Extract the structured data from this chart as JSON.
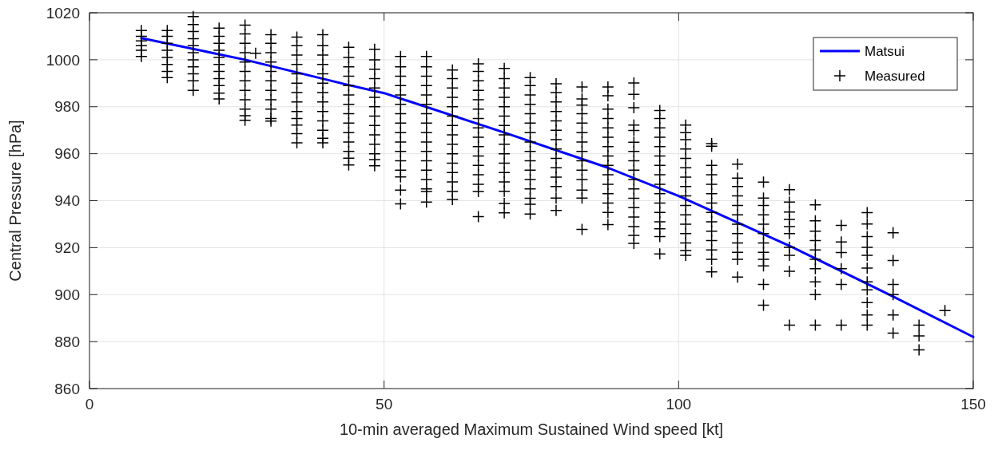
{
  "chart_data": {
    "type": "scatter",
    "xlabel": "10-min averaged Maximum Sustained Wind speed [kt]",
    "ylabel": "Central Pressure [hPa]",
    "xlim": [
      0,
      150
    ],
    "xticks": [
      0,
      50,
      100,
      150
    ],
    "ylim": [
      860,
      1020
    ],
    "yticks": [
      860,
      880,
      900,
      920,
      940,
      960,
      980,
      1000,
      1020
    ],
    "grid": true,
    "legend": "top right",
    "series": [
      {
        "name": "Matsui",
        "type": "line",
        "color": "#0000ff",
        "line_style": "solid",
        "marker": "none",
        "x": [
          8.8,
          26.4,
          44,
          50,
          70.4,
          88,
          100,
          118.8,
          136.4,
          150
        ],
        "values": [
          1009.2,
          1000,
          989.2,
          985.8,
          969,
          954,
          942,
          920.8,
          899.2,
          882
        ]
      },
      {
        "name": "Measured",
        "color": "#000000",
        "marker": "cross",
        "x": [
          8.8,
          8.8,
          8.8,
          8.8,
          8.8,
          8.8,
          13.2,
          13.2,
          13.2,
          13.2,
          13.2,
          13.2,
          13.2,
          13.2,
          17.6,
          17.6,
          17.6,
          17.6,
          17.6,
          17.6,
          17.6,
          17.6,
          17.6,
          17.6,
          17.6,
          22,
          22,
          22,
          22,
          22,
          22,
          22,
          22,
          22,
          22,
          22,
          26.4,
          26.4,
          26.4,
          26.4,
          26.4,
          26.4,
          26.4,
          26.4,
          26.4,
          26.4,
          26.4,
          26.4,
          28.2,
          30.8,
          30.8,
          30.8,
          30.8,
          30.8,
          30.8,
          30.8,
          30.8,
          30.8,
          30.8,
          30.8,
          35.2,
          35.2,
          35.2,
          35.2,
          35.2,
          35.2,
          35.2,
          35.2,
          35.2,
          35.2,
          35.2,
          35.2,
          35.2,
          39.6,
          39.6,
          39.6,
          39.6,
          39.6,
          39.6,
          39.6,
          39.6,
          39.6,
          39.6,
          39.6,
          39.6,
          39.6,
          44,
          44,
          44,
          44,
          44,
          44,
          44,
          44,
          44,
          44,
          44,
          44,
          44,
          44,
          48.4,
          48.4,
          48.4,
          48.4,
          48.4,
          48.4,
          48.4,
          48.4,
          48.4,
          48.4,
          48.4,
          48.4,
          48.4,
          48.4,
          52.8,
          52.8,
          52.8,
          52.8,
          52.8,
          52.8,
          52.8,
          52.8,
          52.8,
          52.8,
          52.8,
          52.8,
          52.8,
          52.8,
          52.8,
          52.8,
          57.2,
          57.2,
          57.2,
          57.2,
          57.2,
          57.2,
          57.2,
          57.2,
          57.2,
          57.2,
          57.2,
          57.2,
          57.2,
          57.2,
          57.2,
          57.2,
          57.2,
          61.6,
          61.6,
          61.6,
          61.6,
          61.6,
          61.6,
          61.6,
          61.6,
          61.6,
          61.6,
          61.6,
          61.6,
          61.6,
          61.6,
          61.6,
          66,
          66,
          66,
          66,
          66,
          66,
          66,
          66,
          66,
          66,
          66,
          66,
          66,
          66,
          66,
          66,
          70.4,
          70.4,
          70.4,
          70.4,
          70.4,
          70.4,
          70.4,
          70.4,
          70.4,
          70.4,
          70.4,
          70.4,
          70.4,
          70.4,
          70.4,
          70.4,
          74.8,
          74.8,
          74.8,
          74.8,
          74.8,
          74.8,
          74.8,
          74.8,
          74.8,
          74.8,
          74.8,
          74.8,
          74.8,
          74.8,
          74.8,
          74.8,
          79.2,
          79.2,
          79.2,
          79.2,
          79.2,
          79.2,
          79.2,
          79.2,
          79.2,
          79.2,
          79.2,
          79.2,
          79.2,
          79.2,
          83.6,
          83.6,
          83.6,
          83.6,
          83.6,
          83.6,
          83.6,
          83.6,
          83.6,
          83.6,
          83.6,
          83.6,
          83.6,
          83.6,
          88,
          88,
          88,
          88,
          88,
          88,
          88,
          88,
          88,
          88,
          88,
          88,
          88,
          88,
          88,
          92.4,
          92.4,
          92.4,
          92.4,
          92.4,
          92.4,
          92.4,
          92.4,
          92.4,
          92.4,
          92.4,
          92.4,
          92.4,
          92.4,
          92.4,
          92.4,
          92.4,
          96.8,
          96.8,
          96.8,
          96.8,
          96.8,
          96.8,
          96.8,
          96.8,
          96.8,
          96.8,
          96.8,
          96.8,
          96.8,
          96.8,
          96.8,
          96.8,
          101.2,
          101.2,
          101.2,
          101.2,
          101.2,
          101.2,
          101.2,
          101.2,
          101.2,
          101.2,
          101.2,
          101.2,
          101.2,
          101.2,
          101.2,
          101.2,
          105.6,
          105.6,
          105.6,
          105.6,
          105.6,
          105.6,
          105.6,
          105.6,
          105.6,
          105.6,
          105.6,
          105.6,
          105.6,
          105.6,
          110,
          110,
          110,
          110,
          110,
          110,
          110,
          110,
          110,
          110,
          110,
          110,
          114.4,
          114.4,
          114.4,
          114.4,
          114.4,
          114.4,
          114.4,
          114.4,
          114.4,
          114.4,
          114.4,
          114.4,
          118.8,
          118.8,
          118.8,
          118.8,
          118.8,
          118.8,
          118.8,
          118.8,
          118.8,
          118.8,
          123.2,
          123.2,
          123.2,
          123.2,
          123.2,
          123.2,
          123.2,
          123.2,
          123.2,
          123.2,
          127.6,
          127.6,
          127.6,
          127.6,
          127.6,
          127.6,
          132,
          132,
          132,
          132,
          132,
          132,
          132,
          132,
          132,
          132,
          132,
          136.4,
          136.4,
          136.4,
          136.4,
          136.4,
          136.4,
          140.8,
          140.8,
          140.8,
          145.2
        ],
        "values": [
          1012.4,
          1010,
          1008,
          1006,
          1004,
          1001.4,
          1012.4,
          1010,
          1007,
          1004,
          1001,
          998,
          995,
          992.4,
          1018.4,
          1015,
          1012,
          1009,
          1006,
          1003,
          1000,
          997,
          994,
          991,
          987,
          1013.5,
          1010,
          1007,
          1004,
          1001,
          998,
          995,
          992,
          989,
          985.8,
          983.3,
          1014.7,
          1011,
          1007,
          1003,
          999,
          995,
          991,
          987,
          983,
          979,
          976.2,
          974.2,
          1002.8,
          1010.7,
          1007,
          1003,
          999,
          995,
          991,
          987,
          983,
          979,
          975,
          973.9,
          1009.6,
          1006,
          1002,
          998,
          994,
          990,
          986,
          982,
          978,
          975,
          972.2,
          968.5,
          964.6,
          1010.7,
          1006,
          1002,
          998,
          994,
          990,
          986,
          982,
          978,
          974,
          970,
          966.6,
          964.6,
          1005.3,
          1001,
          997,
          993,
          989,
          985,
          981,
          977,
          973,
          969,
          965,
          961,
          958.1,
          955.2,
          1004.5,
          1000,
          996,
          992,
          988,
          984,
          980,
          976,
          972,
          968,
          964,
          960,
          957.5,
          954.9,
          1001.4,
          997,
          993,
          989,
          985,
          981,
          977,
          973,
          969,
          965,
          961,
          957,
          953,
          950.1,
          944.5,
          938.6,
          1001.4,
          997,
          993,
          989,
          985,
          981,
          977,
          973,
          969,
          965,
          961,
          957,
          953,
          949,
          945,
          943.9,
          939.4,
          995.6,
          992,
          988,
          984,
          980,
          976,
          972,
          968,
          964,
          960,
          956,
          952,
          948,
          943.9,
          940.5,
          998.3,
          995,
          991,
          987,
          983,
          979,
          975,
          971,
          967,
          963,
          959,
          955,
          951,
          947,
          943.9,
          933.2,
          996.3,
          992,
          988,
          984,
          980,
          976,
          972,
          968,
          964,
          960,
          956,
          952,
          948,
          944,
          938.8,
          934.8,
          992.4,
          989,
          985,
          981,
          977,
          973,
          969,
          965,
          961,
          957,
          953,
          949,
          945,
          941,
          938.5,
          934.3,
          989.8,
          986,
          982,
          978,
          974,
          970,
          966,
          962,
          958,
          954,
          950,
          946,
          941.1,
          935.8,
          988.4,
          983.3,
          980.7,
          977,
          973,
          969,
          965,
          961,
          957,
          953,
          949,
          944.5,
          941.1,
          927.8,
          988.4,
          984.7,
          979,
          975,
          971,
          967,
          963,
          959,
          955,
          951,
          947,
          943,
          939,
          935,
          929.8,
          990.1,
          985.3,
          979.6,
          972.2,
          969.9,
          964.9,
          961,
          957,
          953,
          949,
          945,
          941,
          937,
          933,
          929,
          925.2,
          921.8,
          978.4,
          975,
          971,
          967,
          963,
          959,
          955,
          951,
          947,
          943,
          939,
          935,
          931,
          928,
          924.7,
          917.3,
          972.2,
          969,
          966,
          962,
          958,
          954,
          950,
          946,
          942,
          938,
          934,
          930,
          926,
          922,
          918.8,
          916.7,
          964.3,
          963.2,
          955,
          951,
          947,
          943,
          939,
          935,
          931,
          927,
          923,
          919,
          915,
          909.7,
          955.5,
          949.6,
          946,
          942,
          938,
          934,
          930,
          926,
          922,
          918,
          915,
          907.5,
          947.9,
          941.1,
          938,
          934,
          930,
          926,
          922,
          918,
          915,
          912.2,
          904.3,
          895.5,
          944.7,
          939.4,
          935.2,
          932,
          929,
          926,
          920.1,
          916.7,
          909.9,
          887,
          938.2,
          931.4,
          927,
          923,
          919,
          915,
          911,
          905.4,
          900,
          887,
          929.5,
          922.4,
          917.9,
          911,
          904.3,
          887,
          934.9,
          930.1,
          924.7,
          920.1,
          916.7,
          911.3,
          905.4,
          902,
          896.6,
          891.3,
          887,
          926.3,
          914.5,
          904.3,
          900,
          891.3,
          883.6,
          887,
          882.4,
          876.5,
          893.2
        ]
      }
    ]
  }
}
